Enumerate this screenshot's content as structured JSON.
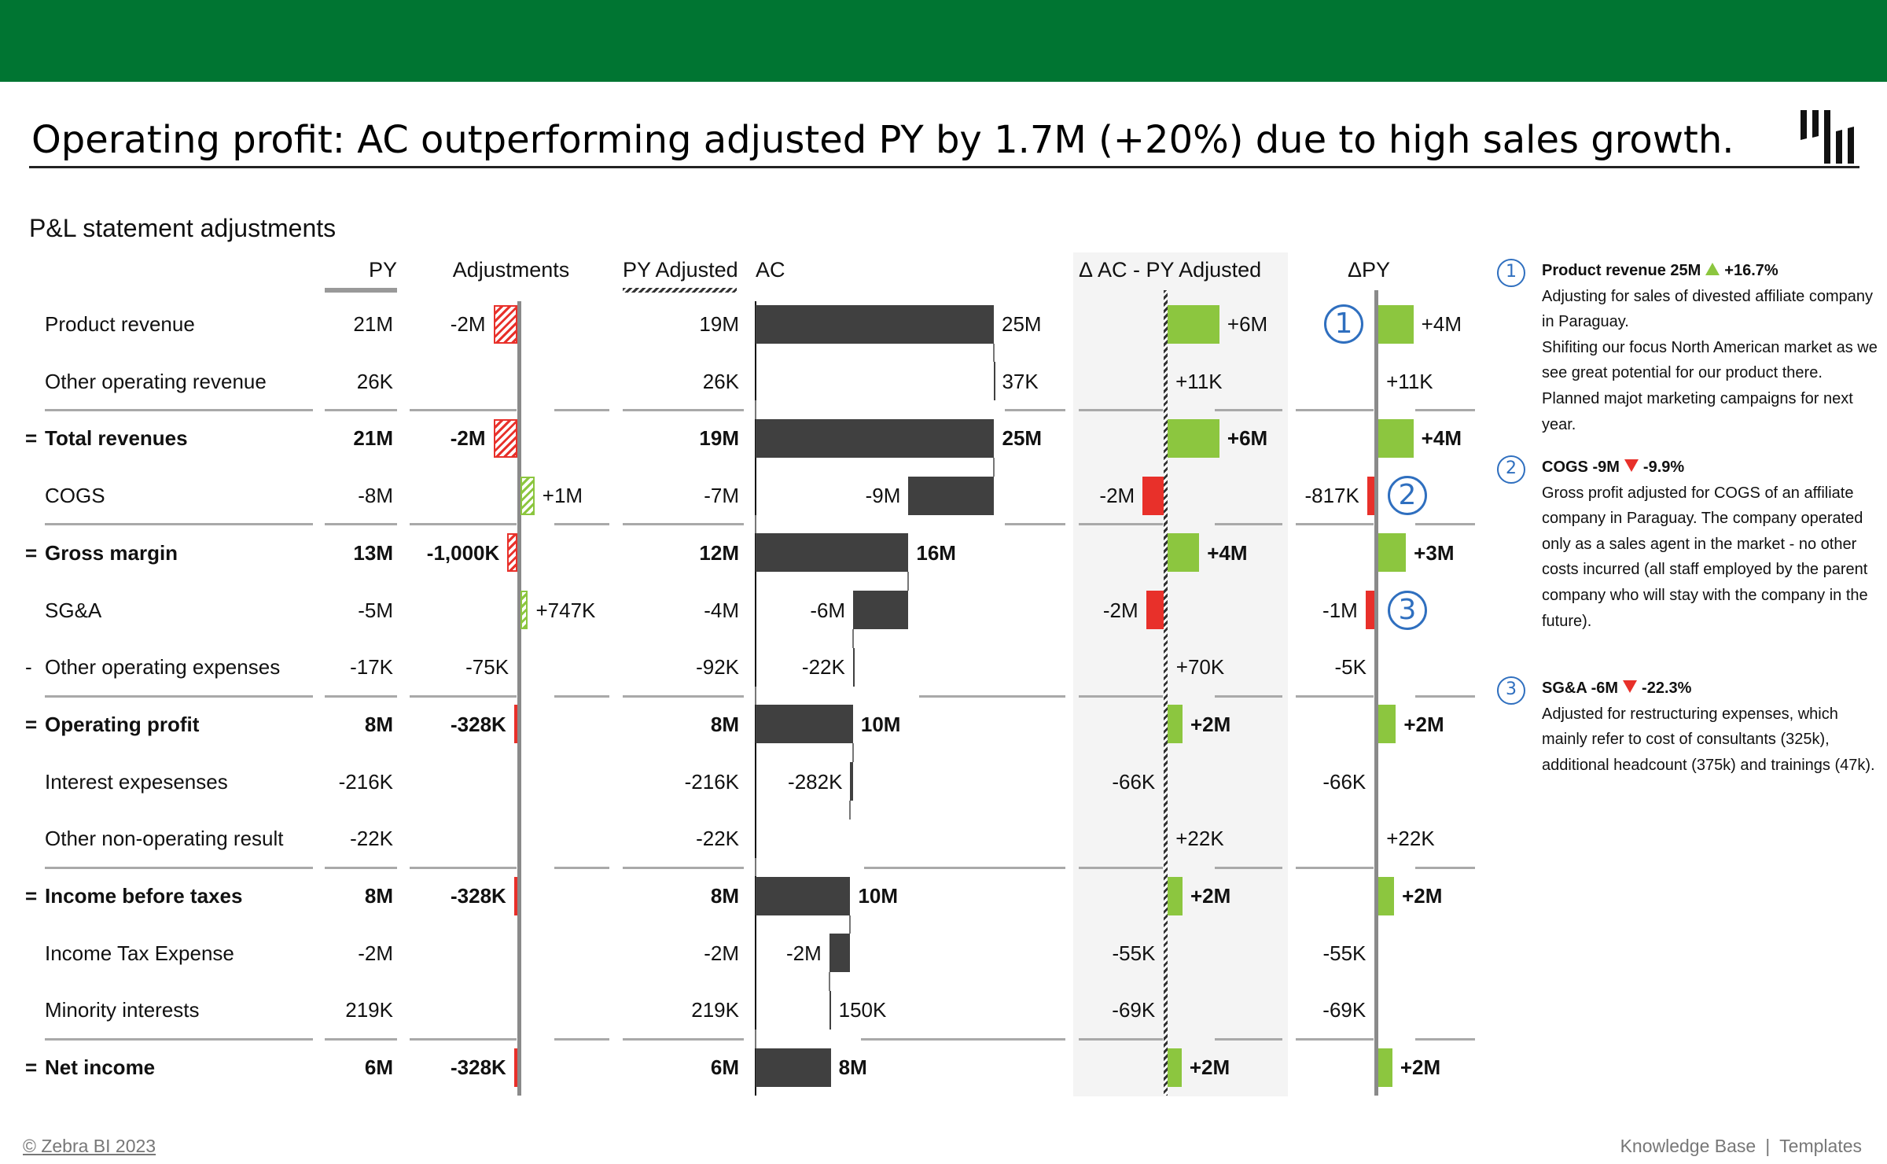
{
  "header": {
    "title": "Operating profit: AC outperforming adjusted PY by 1.7M (+20%) due to high sales growth.",
    "brand_color": "#007532",
    "logo_icon": "zebra-bi-bars-icon"
  },
  "subtitle": "P&L statement adjustments",
  "columns": {
    "py": "PY",
    "adjustments": "Adjustments",
    "py_adjusted": "PY Adjusted",
    "ac": "AC",
    "delta_ac_py_adj": "Δ AC - PY Adjusted",
    "delta_py": "ΔPY"
  },
  "colors": {
    "actual": "#404040",
    "positive": "#8cc63f",
    "negative": "#e8302a",
    "note": "#2f6fbf"
  },
  "table": {
    "rows": [
      {
        "prefix": "",
        "label": "Product revenue",
        "total": false,
        "py": "21M",
        "adj": "-2M",
        "adj_v": -2.4,
        "pya": "19M",
        "ac": "25M",
        "ac_v": 25.0,
        "d1": "+6M",
        "d1_v": 5.9,
        "d2": "+4M",
        "d2_v": 4.0,
        "note": "1"
      },
      {
        "prefix": "",
        "label": "Other operating revenue",
        "total": false,
        "py": "26K",
        "adj": "",
        "adj_v": 0,
        "pya": "26K",
        "ac": "37K",
        "ac_v": 0.037,
        "d1": "+11K",
        "d1_v": 0.011,
        "d2": "+11K",
        "d2_v": 0.011
      },
      {
        "prefix": "=",
        "label": "Total revenues",
        "total": true,
        "py": "21M",
        "adj": "-2M",
        "adj_v": -2.4,
        "pya": "19M",
        "ac": "25M",
        "ac_v": 25.04,
        "d1": "+6M",
        "d1_v": 5.9,
        "d2": "+4M",
        "d2_v": 4.0
      },
      {
        "prefix": "",
        "label": "COGS",
        "total": false,
        "py": "-8M",
        "adj": "+1M",
        "adj_v": 1.4,
        "pya": "-7M",
        "ac": "-9M",
        "ac_v": -9.0,
        "d1": "-2M",
        "d1_v": -2.4,
        "d2": "-817K",
        "d2_v": -0.817,
        "note": "2"
      },
      {
        "prefix": "=",
        "label": "Gross margin",
        "total": true,
        "py": "13M",
        "adj": "-1,000K",
        "adj_v": -1.0,
        "pya": "12M",
        "ac": "16M",
        "ac_v": 16.04,
        "d1": "+4M",
        "d1_v": 3.6,
        "d2": "+3M",
        "d2_v": 3.15
      },
      {
        "prefix": "",
        "label": "SG&A",
        "total": false,
        "py": "-5M",
        "adj": "+747K",
        "adj_v": 0.747,
        "pya": "-4M",
        "ac": "-6M",
        "ac_v": -5.8,
        "d1": "-2M",
        "d1_v": -2.0,
        "d2": "-1M",
        "d2_v": -1.0,
        "note": "3"
      },
      {
        "prefix": "-",
        "label": "Other operating expenses",
        "total": false,
        "py": "-17K",
        "adj": "-75K",
        "adj_v": -0.075,
        "pya": "-92K",
        "ac": "-22K",
        "ac_v": -0.022,
        "d1": "+70K",
        "d1_v": 0.07,
        "d2": "-5K",
        "d2_v": -0.005
      },
      {
        "prefix": "=",
        "label": "Operating profit",
        "total": true,
        "py": "8M",
        "adj": "-328K",
        "adj_v": -0.328,
        "pya": "8M",
        "ac": "10M",
        "ac_v": 10.22,
        "d1": "+2M",
        "d1_v": 1.7,
        "d2": "+2M",
        "d2_v": 2.0
      },
      {
        "prefix": "",
        "label": "Interest expesenses",
        "total": false,
        "py": "-216K",
        "adj": "",
        "adj_v": 0,
        "pya": "-216K",
        "ac": "-282K",
        "ac_v": -0.282,
        "d1": "-66K",
        "d1_v": -0.066,
        "d2": "-66K",
        "d2_v": -0.066
      },
      {
        "prefix": "",
        "label": "Other non-operating result",
        "total": false,
        "py": "-22K",
        "adj": "",
        "adj_v": 0,
        "pya": "-22K",
        "ac": "",
        "ac_v": 0,
        "d1": "+22K",
        "d1_v": 0.022,
        "d2": "+22K",
        "d2_v": 0.022
      },
      {
        "prefix": "=",
        "label": "Income before taxes",
        "total": true,
        "py": "8M",
        "adj": "-328K",
        "adj_v": -0.328,
        "pya": "8M",
        "ac": "10M",
        "ac_v": 9.94,
        "d1": "+2M",
        "d1_v": 1.7,
        "d2": "+2M",
        "d2_v": 1.8
      },
      {
        "prefix": "",
        "label": "Income Tax Expense",
        "total": false,
        "py": "-2M",
        "adj": "",
        "adj_v": 0,
        "pya": "-2M",
        "ac": "-2M",
        "ac_v": -2.2,
        "d1": "-55K",
        "d1_v": -0.055,
        "d2": "-55K",
        "d2_v": -0.055
      },
      {
        "prefix": "",
        "label": "Minority interests",
        "total": false,
        "py": "219K",
        "adj": "",
        "adj_v": 0,
        "pya": "219K",
        "ac": "150K",
        "ac_v": 0.15,
        "d1": "-69K",
        "d1_v": -0.069,
        "d2": "-69K",
        "d2_v": -0.069
      },
      {
        "prefix": "=",
        "label": "Net income",
        "total": true,
        "py": "6M",
        "adj": "-328K",
        "adj_v": -0.328,
        "pya": "6M",
        "ac": "8M",
        "ac_v": 7.89,
        "d1": "+2M",
        "d1_v": 1.6,
        "d2": "+2M",
        "d2_v": 1.6
      }
    ]
  },
  "notes": [
    {
      "num": "1",
      "heading": "Product revenue 25M",
      "direction": "up",
      "pct": "+16.7%",
      "text": "Adjusting for sales of divested affiliate company in Paraguay.\nShifiting our focus North American market as we see great potential for our product there. Planned majot marketing campaigns for next year."
    },
    {
      "num": "2",
      "heading": "COGS -9M",
      "direction": "down",
      "pct": "-9.9%",
      "text": "Gross profit adjusted for COGS of an affiliate company in Paraguay. The company operated only as a sales agent in the market - no other costs incurred (all staff employed by the parent company who will stay with the company in the future)."
    },
    {
      "num": "3",
      "heading": "SG&A -6M",
      "direction": "down",
      "pct": "-22.3%",
      "text": "Adjusted for restructuring expenses, which mainly refer to cost of consultants (325k), additional headcount (375k) and trainings (47k)."
    }
  ],
  "footer": {
    "copyright": "© Zebra BI 2023",
    "knowledge_base": "Knowledge Base",
    "separator": "|",
    "templates": "Templates"
  }
}
